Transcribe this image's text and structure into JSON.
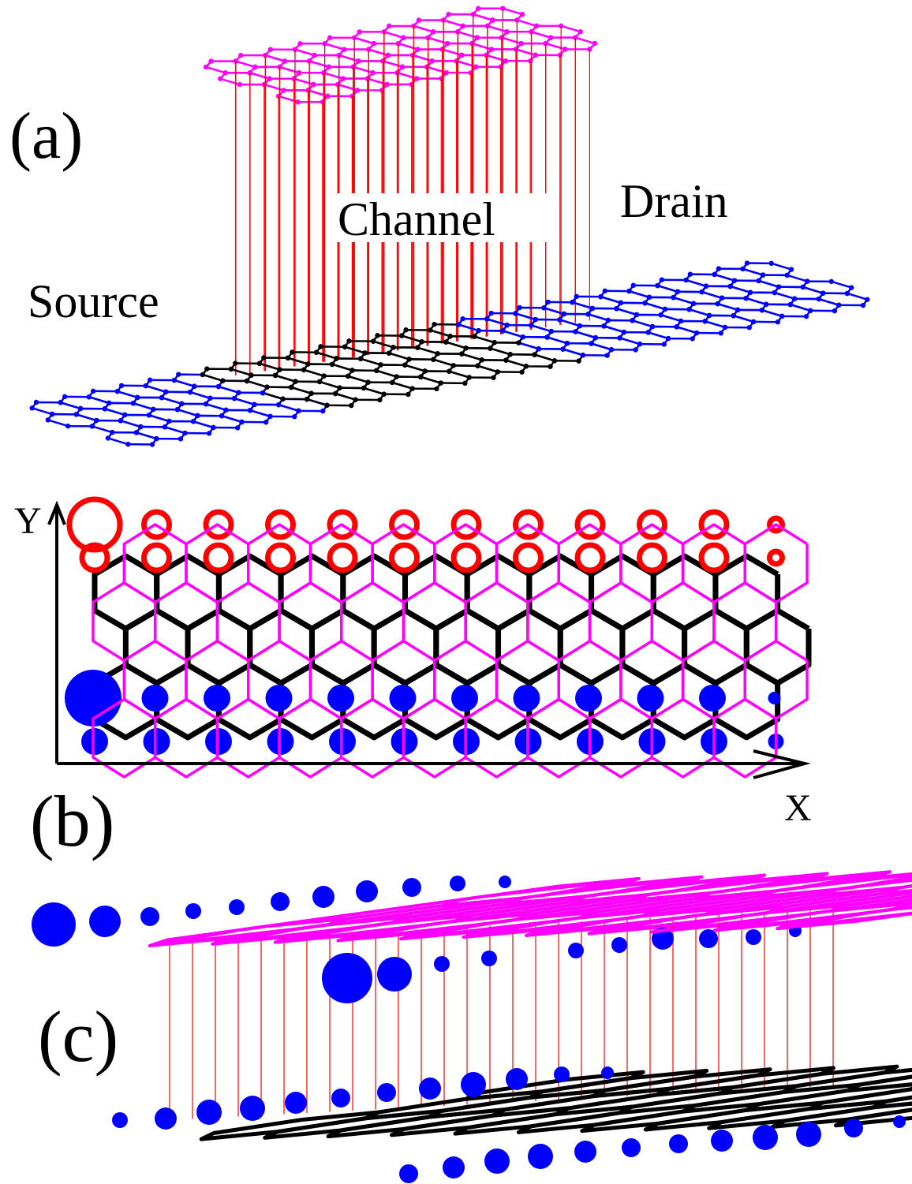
{
  "panel_a": {
    "label": "(a)",
    "source": "Source",
    "channel": "Channel",
    "drain": "Drain"
  },
  "panel_b": {
    "label": "(b)",
    "y_axis": "Y",
    "x_axis": "X"
  },
  "panel_c": {
    "label": "(c)"
  }
}
